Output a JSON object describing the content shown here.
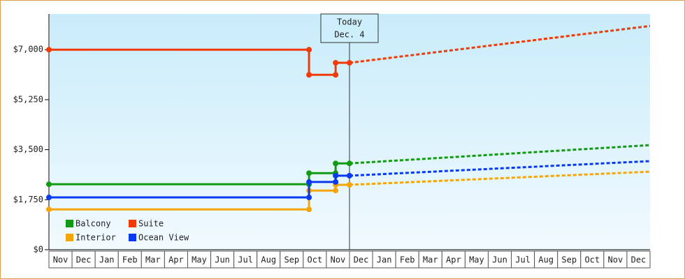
{
  "chart_data": {
    "type": "step-line",
    "categories": [
      "Nov",
      "Dec",
      "Jan",
      "Feb",
      "Mar",
      "Apr",
      "May",
      "Jun",
      "Jul",
      "Aug",
      "Sep",
      "Oct",
      "Nov",
      "Dec",
      "Jan",
      "Feb",
      "Mar",
      "Apr",
      "May",
      "Jun",
      "Jul",
      "Aug",
      "Sep",
      "Oct",
      "Nov",
      "Dec"
    ],
    "xlim": [
      0,
      26
    ],
    "ylim": [
      0,
      8250
    ],
    "yticks": [
      {
        "value": 0,
        "label": "$0"
      },
      {
        "value": 1750,
        "label": "$1,750"
      },
      {
        "value": 3500,
        "label": "$3,500"
      },
      {
        "value": 5250,
        "label": "$5,250"
      },
      {
        "value": 7000,
        "label": "$7,000"
      }
    ],
    "annotation": {
      "x": 13,
      "text": [
        "Today",
        "Dec. 4"
      ]
    },
    "series": [
      {
        "name": "Balcony",
        "color": "#129a12",
        "x": [
          0,
          11.25,
          11.25,
          12.4,
          12.4,
          13
        ],
        "values": [
          2290,
          2290,
          2680,
          2680,
          3020,
          3020
        ],
        "projection": {
          "x": [
            13,
            26
          ],
          "values": [
            3020,
            3660
          ]
        }
      },
      {
        "name": "Suite",
        "color": "#f23a06",
        "x": [
          0,
          11.25,
          11.25,
          12.4,
          12.4,
          13
        ],
        "values": [
          7000,
          7000,
          6120,
          6120,
          6540,
          6540
        ],
        "projection": {
          "x": [
            13,
            26
          ],
          "values": [
            6540,
            7830
          ]
        }
      },
      {
        "name": "Interior",
        "color": "#f5a50a",
        "x": [
          0,
          11.25,
          11.25,
          12.4,
          12.4,
          13
        ],
        "values": [
          1410,
          1410,
          2070,
          2070,
          2270,
          2270
        ],
        "projection": {
          "x": [
            13,
            26
          ],
          "values": [
            2270,
            2730
          ]
        }
      },
      {
        "name": "Ocean View",
        "color": "#0a3af0",
        "x": [
          0,
          11.25,
          11.25,
          12.4,
          12.4,
          13
        ],
        "values": [
          1830,
          1830,
          2370,
          2370,
          2590,
          2590
        ],
        "projection": {
          "x": [
            13,
            26
          ],
          "values": [
            2590,
            3100
          ]
        }
      }
    ],
    "legend": "lower-left"
  }
}
